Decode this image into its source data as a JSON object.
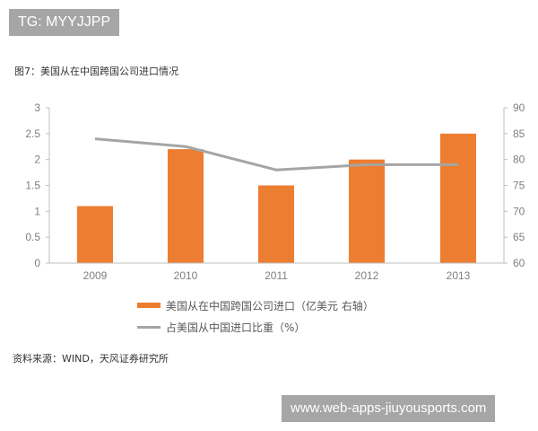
{
  "watermark_top": "TG: MYYJJPP",
  "watermark_bottom": "www.web-apps-jiuyousports.com",
  "caption": "图7：美国从在中国跨国公司进口情况",
  "source": "资料来源：WIND，天风证券研究所",
  "legend": {
    "bar_label": "美国从在中国跨国公司进口（亿美元 右轴）",
    "line_label": "占美国从中国进口比重（%）"
  },
  "colors": {
    "bar": "#ed7d31",
    "line": "#a5a5a5",
    "axis": "#bfbfbf",
    "tick_text": "#7f7f7f"
  },
  "chart_data": {
    "type": "bar+line",
    "title": "图7：美国从在中国跨国公司进口情况",
    "categories": [
      "2009",
      "2010",
      "2011",
      "2012",
      "2013"
    ],
    "series": [
      {
        "name": "美国从在中国跨国公司进口（亿美元 右轴）",
        "type": "bar",
        "axis": "left",
        "values": [
          1.1,
          2.2,
          1.5,
          2.0,
          2.5
        ]
      },
      {
        "name": "占美国从中国进口比重（%）",
        "type": "line",
        "axis": "right",
        "values": [
          84,
          82.5,
          78,
          79,
          79
        ]
      }
    ],
    "y_left": {
      "ticks": [
        "0",
        "0.5",
        "1",
        "1.5",
        "2",
        "2.5",
        "3"
      ],
      "range": [
        0,
        3
      ]
    },
    "y_right": {
      "ticks": [
        "60",
        "65",
        "70",
        "75",
        "80",
        "85",
        "90"
      ],
      "range": [
        60,
        90
      ]
    },
    "grid": false,
    "legend_position": "bottom"
  }
}
